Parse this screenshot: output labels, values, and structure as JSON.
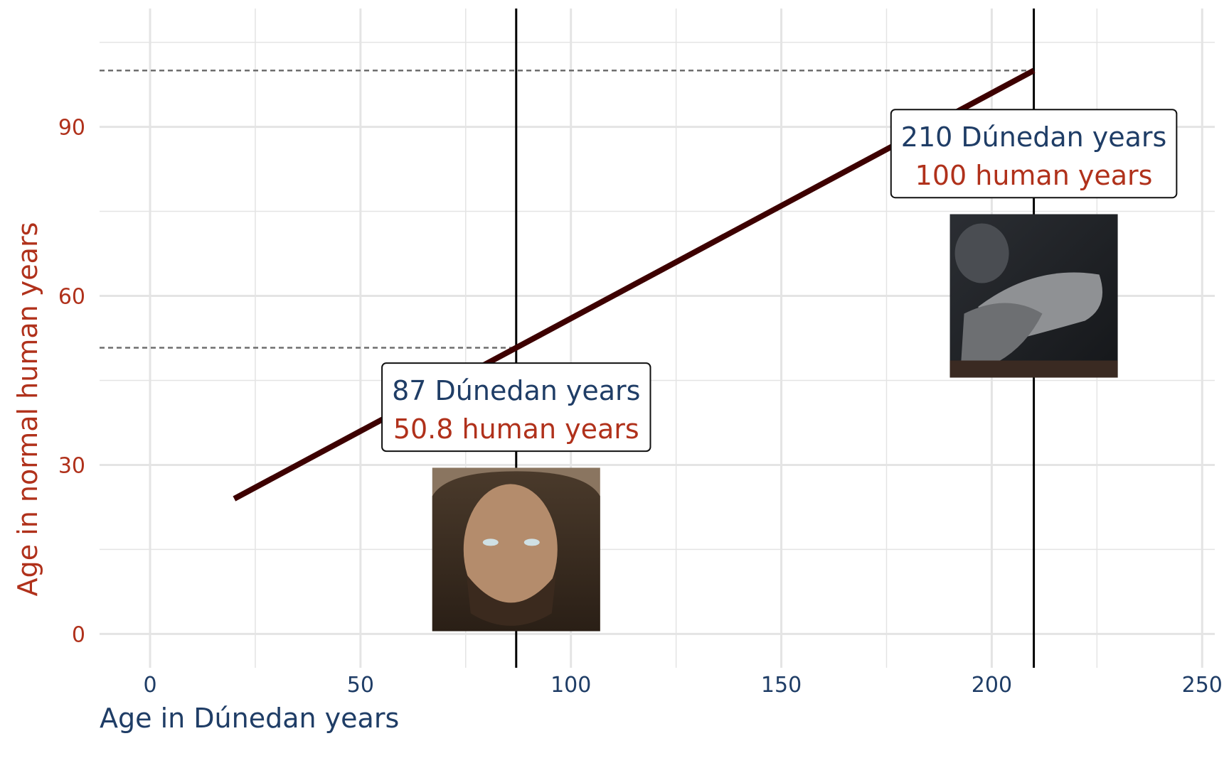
{
  "colors": {
    "blue": "#1f3d66",
    "red": "#b0311b",
    "line": "#3d0000",
    "grid": "#e4e4e4",
    "guide": "#6e6e6e",
    "vline": "#000000"
  },
  "chart_data": {
    "type": "line",
    "title": "",
    "xlabel": "Age in Dúnedan years",
    "ylabel": "Age in normal human years",
    "xlim": [
      -12,
      253
    ],
    "ylim": [
      -6,
      111
    ],
    "xticks": [
      "0",
      "50",
      "100",
      "150",
      "200",
      "250"
    ],
    "yticks": [
      "0",
      "30",
      "60",
      "90"
    ],
    "grid": true,
    "legend": "none",
    "series": [
      {
        "x": [
          20,
          210
        ],
        "y": [
          24,
          100
        ]
      }
    ],
    "vertical_lines": [
      87,
      210
    ],
    "guides": [
      {
        "x": 87,
        "y": 50.8
      },
      {
        "x": 210,
        "y": 100
      }
    ],
    "annotations": [
      {
        "x": 87,
        "y": 40,
        "line1": "87 Dúnedan years",
        "line2": "50.8 human years"
      },
      {
        "x": 210,
        "y": 85,
        "line1": "210 Dúnedan years",
        "line2": "100 human years"
      }
    ],
    "images": [
      {
        "name": "aragorn-portrait",
        "x": 87,
        "y_top": 29.5,
        "y_bottom": 0.5
      },
      {
        "name": "aragorn-deathbed",
        "x": 210,
        "y_top": 74.5,
        "y_bottom": 45.5
      }
    ]
  }
}
